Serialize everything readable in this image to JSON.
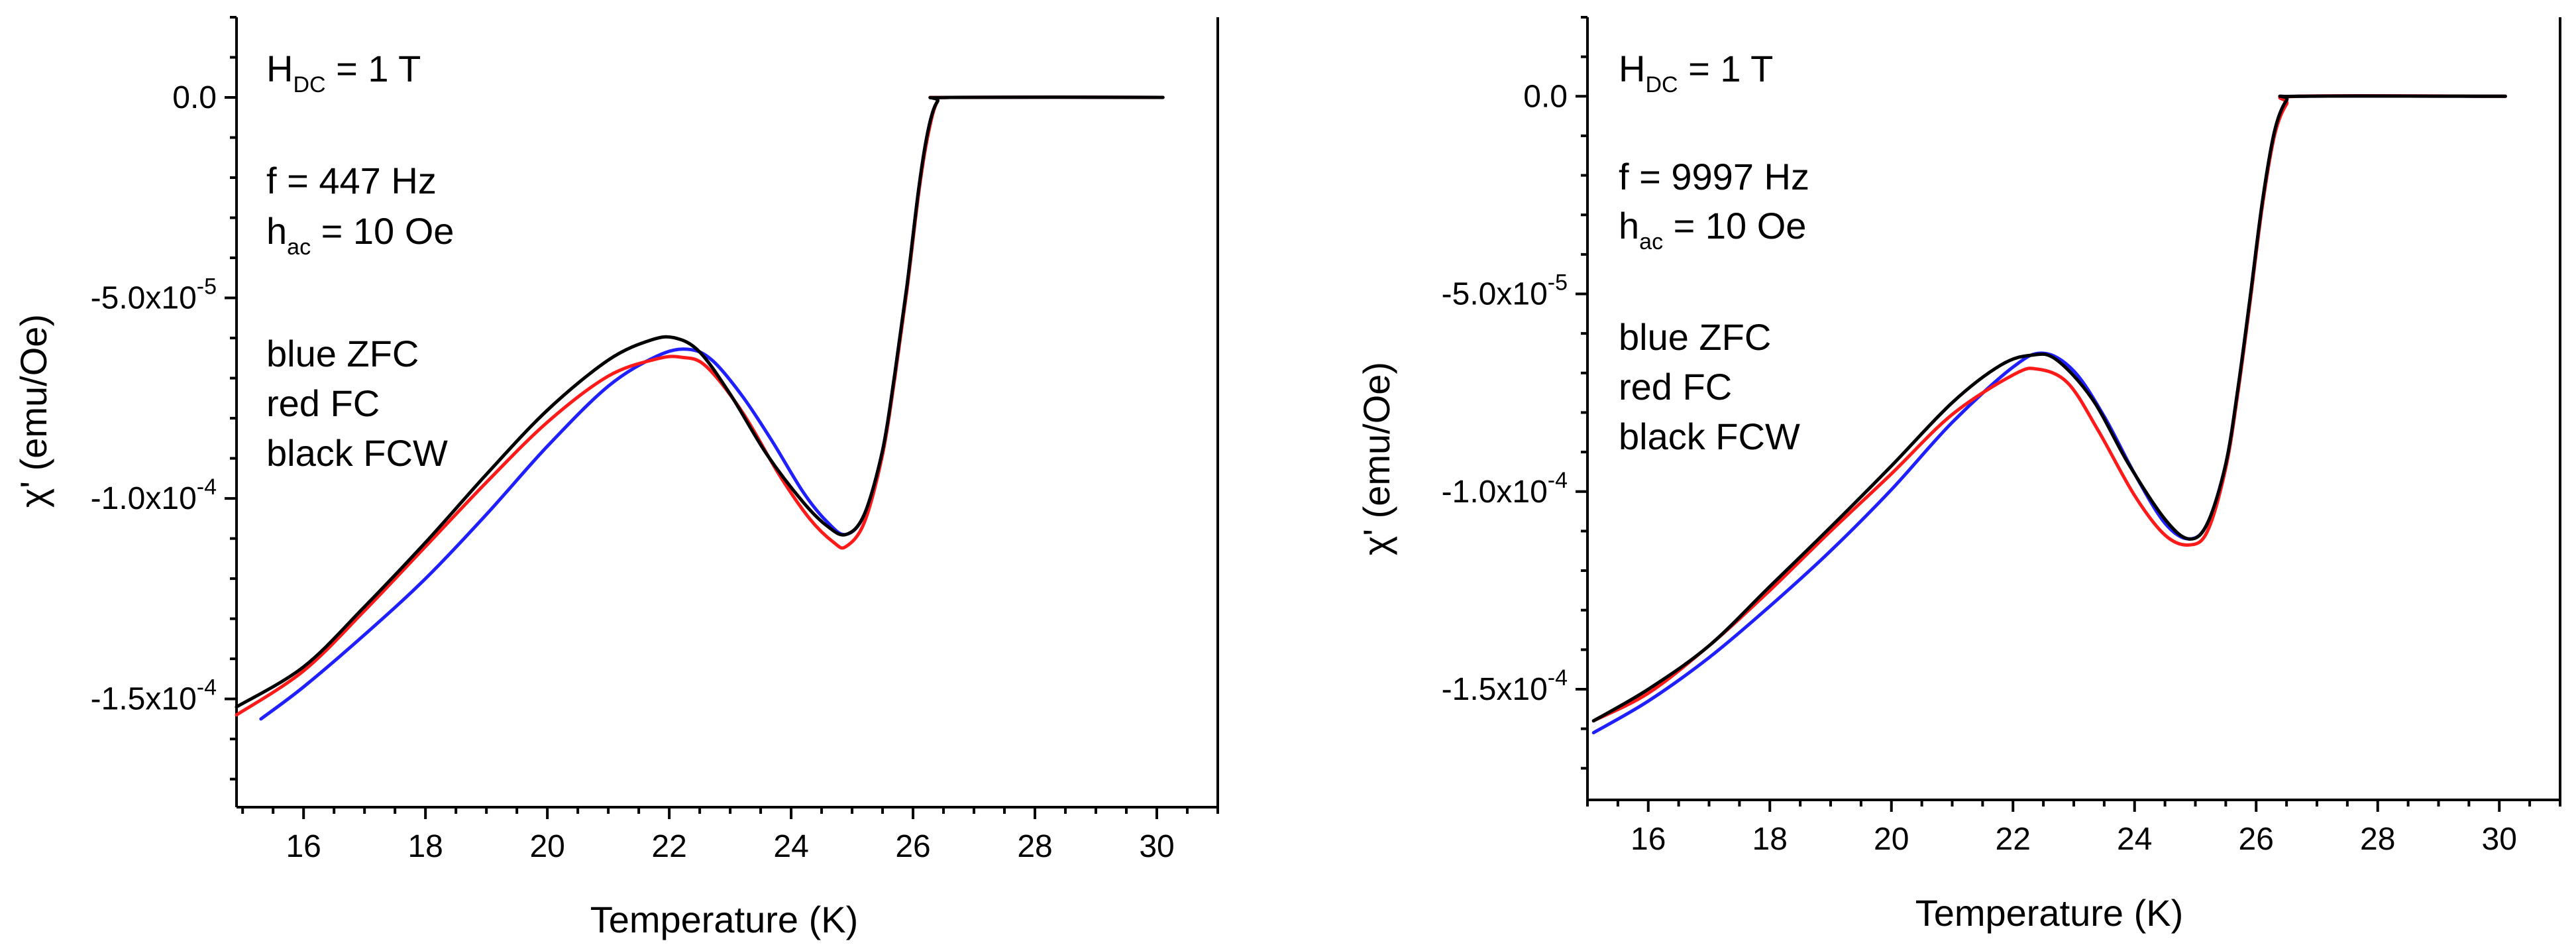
{
  "chart_data": [
    {
      "type": "line",
      "xlabel": "Temperature (K)",
      "ylabel": "χ' (emu/Oe)",
      "xlim": [
        14.9,
        31.0
      ],
      "ylim": [
        -0.000177,
        2e-05
      ],
      "x_ticks": [
        "16",
        "18",
        "20",
        "22",
        "24",
        "26",
        "28",
        "30"
      ],
      "y_ticks": [
        {
          "mantissa": "-1.5x10",
          "exp": "-4",
          "value": -0.00015
        },
        {
          "mantissa": "-1.0x10",
          "exp": "-4",
          "value": -0.0001
        },
        {
          "mantissa": "-5.0x10",
          "exp": "-5",
          "value": -5e-05
        },
        {
          "mantissa": "0.0",
          "exp": "",
          "value": 0
        }
      ],
      "annotations": {
        "hdc_main": "H",
        "hdc_sub": "DC",
        "hdc_rest": " = 1 T",
        "freq": "f = 447 Hz",
        "hac_main": "h",
        "hac_sub": "ac",
        "hac_rest": " = 10 Oe",
        "legend_blue": "blue ZFC",
        "legend_red": "red FC",
        "legend_black": "black FCW"
      },
      "series": [
        {
          "name": "ZFC",
          "color": "#1f1fff",
          "x": [
            15.3,
            16,
            17,
            18,
            19,
            20,
            21,
            21.8,
            22.3,
            22.7,
            23.2,
            23.7,
            24.2,
            24.6,
            24.9,
            25.2,
            25.5,
            25.7,
            25.9,
            26.1,
            26.25,
            26.4,
            26.6,
            30.1
          ],
          "y": [
            -0.000155,
            -0.000147,
            -0.000134,
            -0.00012,
            -0.000104,
            -8.7e-05,
            -7.2e-05,
            -6.45e-05,
            -6.28e-05,
            -6.55e-05,
            -7.45e-05,
            -8.6e-05,
            -9.85e-05,
            -0.000106,
            -0.000109,
            -0.000104,
            -8.8e-05,
            -6.9e-05,
            -4.7e-05,
            -2.2e-05,
            -8e-06,
            -1e-06,
            0,
            0
          ]
        },
        {
          "name": "FC",
          "color": "#ff1a1a",
          "x": [
            14.9,
            16,
            17,
            18,
            19,
            20,
            21,
            21.8,
            22.2,
            22.6,
            23.2,
            23.8,
            24.3,
            24.7,
            24.9,
            25.2,
            25.5,
            25.7,
            25.9,
            26.1,
            26.25,
            26.4,
            26.6,
            30.1
          ],
          "y": [
            -0.000154,
            -0.000143,
            -0.000128,
            -0.000112,
            -9.6e-05,
            -8.1e-05,
            -6.95e-05,
            -6.52e-05,
            -6.48e-05,
            -6.7e-05,
            -7.85e-05,
            -9.4e-05,
            -0.000105,
            -0.000111,
            -0.000112,
            -0.000106,
            -8.9e-05,
            -7e-05,
            -4.8e-05,
            -2.3e-05,
            -9e-06,
            -1e-06,
            0,
            0
          ]
        },
        {
          "name": "FCW",
          "color": "#000000",
          "x": [
            14.9,
            16,
            17,
            18,
            19,
            20,
            21,
            21.7,
            22.1,
            22.5,
            23,
            23.6,
            24.2,
            24.6,
            24.9,
            25.2,
            25.5,
            25.7,
            25.9,
            26.1,
            26.25,
            26.4,
            26.6,
            30.1
          ],
          "y": [
            -0.000152,
            -0.000142,
            -0.000127,
            -0.000111,
            -9.4e-05,
            -7.8e-05,
            -6.55e-05,
            -6.05e-05,
            -6e-05,
            -6.35e-05,
            -7.4e-05,
            -8.9e-05,
            -0.000101,
            -0.000107,
            -0.000109,
            -0.000104,
            -8.8e-05,
            -6.9e-05,
            -4.7e-05,
            -2.2e-05,
            -8e-06,
            -1e-06,
            0,
            0
          ]
        }
      ]
    },
    {
      "type": "line",
      "xlabel": "Temperature (K)",
      "ylabel": "χ' (emu/Oe)",
      "xlim": [
        15.0,
        31.0
      ],
      "ylim": [
        -0.000178,
        2e-05
      ],
      "x_ticks": [
        "16",
        "18",
        "20",
        "22",
        "24",
        "26",
        "28",
        "30"
      ],
      "y_ticks": [
        {
          "mantissa": "-1.5x10",
          "exp": "-4",
          "value": -0.00015
        },
        {
          "mantissa": "-1.0x10",
          "exp": "-4",
          "value": -0.0001
        },
        {
          "mantissa": "-5.0x10",
          "exp": "-5",
          "value": -5e-05
        },
        {
          "mantissa": "0.0",
          "exp": "",
          "value": 0
        }
      ],
      "annotations": {
        "hdc_main": "H",
        "hdc_sub": "DC",
        "hdc_rest": " = 1 T",
        "freq": "f = 9997 Hz",
        "hac_main": "h",
        "hac_sub": "ac",
        "hac_rest": " = 10 Oe",
        "legend_blue": "blue ZFC",
        "legend_red": "red FC",
        "legend_black": "black FCW"
      },
      "series": [
        {
          "name": "ZFC",
          "color": "#1f1fff",
          "x": [
            15.1,
            16,
            17,
            18,
            19,
            20,
            21,
            22,
            22.5,
            23,
            23.5,
            24,
            24.5,
            24.9,
            25.2,
            25.5,
            25.7,
            25.9,
            26.1,
            26.3,
            26.5,
            26.7,
            30.1
          ],
          "y": [
            -0.000161,
            -0.000153,
            -0.000142,
            -0.000129,
            -0.000115,
            -9.95e-05,
            -8.25e-05,
            -6.85e-05,
            -6.5e-05,
            -6.95e-05,
            -8.1e-05,
            -9.55e-05,
            -0.000108,
            -0.000112,
            -0.000108,
            -9.3e-05,
            -7.4e-05,
            -5.1e-05,
            -2.7e-05,
            -9e-06,
            -1e-06,
            0,
            0
          ]
        },
        {
          "name": "FC",
          "color": "#ff1a1a",
          "x": [
            15.1,
            16,
            17,
            18,
            19,
            20,
            21,
            22,
            22.4,
            22.9,
            23.4,
            24,
            24.5,
            24.9,
            25.2,
            25.5,
            25.7,
            25.9,
            26.1,
            26.3,
            26.5,
            26.7,
            30.1
          ],
          "y": [
            -0.000158,
            -0.000151,
            -0.000139,
            -0.000125,
            -0.00011,
            -9.55e-05,
            -8.05e-05,
            -7.05e-05,
            -6.9e-05,
            -7.25e-05,
            -8.45e-05,
            -0.000101,
            -0.000111,
            -0.0001135,
            -0.00011,
            -9.4e-05,
            -7.5e-05,
            -5.2e-05,
            -2.8e-05,
            -1e-05,
            -2e-06,
            0,
            0
          ]
        },
        {
          "name": "FCW",
          "color": "#000000",
          "x": [
            15.1,
            16,
            17,
            18,
            19,
            20,
            21,
            21.8,
            22.3,
            22.7,
            23.3,
            23.9,
            24.5,
            24.9,
            25.2,
            25.5,
            25.7,
            25.9,
            26.1,
            26.3,
            26.5,
            26.7,
            30.1
          ],
          "y": [
            -0.000158,
            -0.00015,
            -0.000139,
            -0.000124,
            -0.000109,
            -9.35e-05,
            -7.75e-05,
            -6.8e-05,
            -6.55e-05,
            -6.65e-05,
            -7.65e-05,
            -9.3e-05,
            -0.000107,
            -0.000112,
            -0.000108,
            -9.3e-05,
            -7.4e-05,
            -5.1e-05,
            -2.7e-05,
            -9e-06,
            -1e-06,
            0,
            0
          ]
        }
      ]
    }
  ]
}
